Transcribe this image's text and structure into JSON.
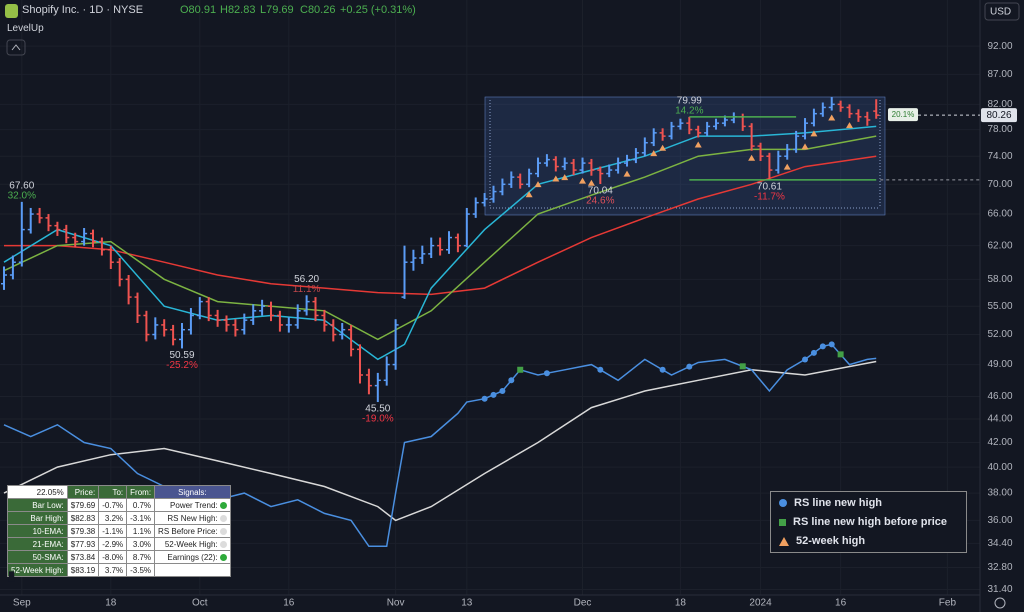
{
  "header": {
    "symbol": "Shopify Inc. · 1D · NYSE",
    "open": "O80.91",
    "high": "H82.83",
    "low": "L79.69",
    "close": "C80.26",
    "change": "+0.25 (+0.31%)",
    "indicator": "LevelUp",
    "currency": "USD"
  },
  "chart_data": {
    "type": "ohlc",
    "log_scale": true,
    "grid": true,
    "xlim": [
      -0.45,
      109.66
    ],
    "ylim": [
      31.06,
      100.8
    ],
    "xticks": [
      {
        "value": 2,
        "label": "Sep"
      },
      {
        "value": 12,
        "label": "18"
      },
      {
        "value": 22,
        "label": "Oct"
      },
      {
        "value": 32,
        "label": "16"
      },
      {
        "value": 44,
        "label": "Nov"
      },
      {
        "value": 52,
        "label": "13"
      },
      {
        "value": 65,
        "label": "Dec"
      },
      {
        "value": 76,
        "label": "18"
      },
      {
        "value": 85,
        "label": "2024"
      },
      {
        "value": 94,
        "label": "16"
      },
      {
        "value": 106,
        "label": "Feb"
      }
    ],
    "yticks": [
      {
        "value": 92,
        "label": "92.00"
      },
      {
        "value": 87,
        "label": "87.00"
      },
      {
        "value": 82,
        "label": "82.00"
      },
      {
        "value": 78,
        "label": "78.00"
      },
      {
        "value": 74,
        "label": "74.00"
      },
      {
        "value": 70,
        "label": "70.00"
      },
      {
        "value": 66,
        "label": "66.00"
      },
      {
        "value": 62,
        "label": "62.00"
      },
      {
        "value": 58,
        "label": "58.00"
      },
      {
        "value": 55,
        "label": "55.00"
      },
      {
        "value": 52,
        "label": "52.00"
      },
      {
        "value": 49,
        "label": "49.00"
      },
      {
        "value": 46,
        "label": "46.00"
      },
      {
        "value": 44,
        "label": "44.00"
      },
      {
        "value": 42,
        "label": "42.00"
      },
      {
        "value": 40,
        "label": "40.00"
      },
      {
        "value": 38,
        "label": "38.00"
      },
      {
        "value": 36,
        "label": "36.00"
      },
      {
        "value": 34.4,
        "label": "34.40"
      },
      {
        "value": 32.8,
        "label": "32.80"
      },
      {
        "value": 31.4,
        "label": "31.40"
      }
    ],
    "up_color": "#5b9cf6",
    "down_color": "#ef5350",
    "bars": {
      "open": [
        57.5,
        58.5,
        60,
        64,
        66,
        65.5,
        64.5,
        64,
        63,
        62.5,
        63.5,
        62.5,
        61.5,
        60,
        58,
        56,
        54,
        52,
        53,
        52.5,
        51.5,
        52.5,
        54,
        55.5,
        54,
        53.5,
        53,
        52.5,
        53.5,
        54.5,
        55,
        54,
        53,
        53,
        54.5,
        55.5,
        54,
        53,
        52,
        52.5,
        50.5,
        48,
        47,
        47.5,
        49,
        56,
        60,
        60.5,
        61,
        62,
        61.5,
        63,
        62,
        66,
        67.5,
        68,
        69,
        70,
        71,
        70,
        71.5,
        73,
        73.5,
        72.5,
        73,
        72,
        73,
        72,
        71.5,
        72,
        73,
        73.5,
        74.5,
        76,
        77.5,
        77,
        78.5,
        79,
        78,
        77.5,
        78.5,
        79,
        79.5,
        80,
        78.5,
        75.5,
        74,
        72,
        74,
        75,
        77,
        79,
        80.5,
        81.5,
        82,
        81.5,
        80.5,
        80,
        80.91
      ],
      "high": [
        59.5,
        60.8,
        67.6,
        66.8,
        66.8,
        66,
        65,
        64.6,
        63.6,
        64.2,
        64,
        63,
        62,
        60.5,
        58.5,
        56.5,
        54.5,
        53.8,
        53.6,
        53,
        53.2,
        54.8,
        56,
        56,
        54.6,
        54,
        53.6,
        54.2,
        55.2,
        55.7,
        55.5,
        54.5,
        53.8,
        55.2,
        56.2,
        56,
        54.6,
        53.6,
        53.2,
        53,
        51,
        48.6,
        48.2,
        49.8,
        53.6,
        62,
        61.5,
        62,
        63,
        63,
        63.8,
        63.5,
        66.8,
        68.2,
        68.8,
        69.8,
        70.8,
        71.8,
        71.5,
        72.2,
        73.8,
        74.3,
        74,
        73.8,
        73.6,
        73.8,
        73.6,
        72.5,
        72.8,
        73.8,
        74.2,
        75.2,
        76.8,
        78.2,
        78.2,
        79.2,
        79.7,
        79.99,
        78.6,
        79.2,
        79.7,
        80.2,
        80.7,
        80.5,
        79,
        76,
        74.5,
        74.8,
        75.8,
        77.8,
        79.8,
        81.3,
        82.3,
        83.19,
        82.6,
        82,
        81.2,
        80.8,
        82.83
      ],
      "low": [
        56.8,
        58,
        59.5,
        63.5,
        64.8,
        63.8,
        63.2,
        62.3,
        61.8,
        62,
        61.8,
        60.8,
        59.2,
        57.2,
        55.2,
        53.2,
        51.3,
        51.5,
        51.8,
        50.9,
        50.59,
        52,
        53.6,
        53.4,
        52.8,
        52.3,
        51.8,
        52,
        53,
        54,
        53.4,
        52.3,
        52.2,
        52.6,
        54,
        53.4,
        52.3,
        51.3,
        51.5,
        49.8,
        47.2,
        46.2,
        45.5,
        47,
        48.5,
        55.8,
        59,
        59.8,
        60.5,
        60.8,
        61,
        61.2,
        61.8,
        65.5,
        67,
        67.5,
        68.5,
        69.5,
        69.4,
        69.6,
        71,
        72.5,
        71.8,
        72,
        71.3,
        71.5,
        71.2,
        70.04,
        71,
        71.5,
        72.5,
        73,
        74,
        75.5,
        76.3,
        76.5,
        78,
        77.3,
        76.8,
        77,
        78,
        78.5,
        79,
        77.8,
        74.8,
        73.3,
        70.61,
        71.5,
        73.5,
        74.5,
        76.5,
        78.5,
        80,
        81,
        80.8,
        79.8,
        79.2,
        78.6,
        79.69
      ],
      "close": [
        58.5,
        60,
        64,
        66,
        65.5,
        64.5,
        64,
        63,
        62.5,
        63.5,
        62.5,
        61.5,
        60,
        58,
        56,
        54,
        52,
        53,
        52.5,
        51.5,
        52.5,
        54,
        55.5,
        54,
        53.5,
        53,
        52.5,
        53.5,
        54.5,
        55,
        54,
        53,
        53,
        54.5,
        55.5,
        54,
        53,
        52,
        52.5,
        50.5,
        48,
        47,
        47.5,
        49,
        53,
        60,
        60.5,
        61,
        62,
        61.5,
        63,
        62,
        66,
        67.5,
        68,
        69,
        70,
        71,
        70,
        71.5,
        73,
        73.5,
        72.5,
        73,
        72,
        73,
        72,
        71.5,
        72,
        73,
        73.5,
        74.5,
        76,
        77.5,
        77,
        78.5,
        79,
        78,
        77.5,
        78.5,
        79,
        79.5,
        80,
        78.5,
        75.5,
        74,
        72,
        74,
        75,
        77,
        79,
        80.5,
        81.5,
        82,
        81.5,
        80.5,
        80,
        79.5,
        80.26
      ]
    },
    "lines": [
      {
        "name": "50-SMA",
        "color": "#e53935",
        "x": [
          0,
          6,
          12,
          18,
          24,
          30,
          36,
          42,
          48,
          54,
          60,
          66,
          72,
          78,
          84,
          90,
          98
        ],
        "values": [
          62,
          62,
          61.5,
          60,
          58.5,
          57.5,
          57,
          56.5,
          56.3,
          57,
          60,
          63,
          65.5,
          68,
          70,
          72.5,
          74
        ]
      },
      {
        "name": "21-EMA",
        "color": "#7cb342",
        "x": [
          0,
          6,
          12,
          18,
          24,
          30,
          36,
          42,
          48,
          54,
          60,
          66,
          72,
          78,
          84,
          90,
          98
        ],
        "values": [
          59,
          62,
          62.5,
          58,
          55.5,
          55,
          54.5,
          51.5,
          54.5,
          60,
          66,
          68.5,
          71,
          74,
          75,
          75,
          77
        ]
      },
      {
        "name": "10-EMA",
        "color": "#29b6d6",
        "x": [
          0,
          6,
          12,
          18,
          24,
          30,
          36,
          42,
          45,
          48,
          54,
          60,
          66,
          72,
          78,
          84,
          90,
          98
        ],
        "values": [
          60,
          64,
          62,
          55,
          53.5,
          54,
          53.5,
          49.5,
          51,
          57,
          64,
          70,
          72,
          74,
          77,
          77,
          77.5,
          78.5
        ]
      }
    ],
    "rs_line": {
      "color": "#4a8fe0",
      "x": [
        0,
        3,
        6,
        9,
        12,
        15,
        18,
        21,
        24,
        27,
        30,
        33,
        36,
        39,
        41,
        43,
        44,
        45,
        48,
        51,
        52,
        54,
        56,
        58,
        60,
        63,
        66,
        69,
        72,
        75,
        78,
        81,
        84,
        86,
        88,
        90,
        92,
        93,
        95,
        97,
        98
      ],
      "values": [
        43.5,
        42.5,
        43.5,
        42,
        41.5,
        39.5,
        38.5,
        37,
        37.5,
        38,
        37,
        37.5,
        36.5,
        36,
        34.2,
        34.2,
        38,
        42,
        42.5,
        44.5,
        45.5,
        45.8,
        46.5,
        48.5,
        48,
        48.5,
        49,
        47.5,
        49.5,
        48,
        49.2,
        49.5,
        48.5,
        46.5,
        48.5,
        49.5,
        50.8,
        51,
        49,
        49.5,
        49.6
      ]
    },
    "rs_ma": {
      "color": "#d8d8d8",
      "x": [
        0,
        6,
        12,
        18,
        24,
        30,
        36,
        42,
        44,
        48,
        54,
        60,
        66,
        72,
        78,
        84,
        90,
        98
      ],
      "values": [
        38,
        40,
        41,
        41.5,
        40.5,
        39.5,
        38.5,
        37,
        36,
        37,
        39.5,
        42,
        45,
        46.5,
        47.5,
        48.5,
        48,
        49.3
      ]
    },
    "markers": [
      {
        "name": "RS line new high",
        "shape": "circle",
        "color": "#4a8fe0",
        "bars": [
          54,
          55,
          56,
          57,
          61,
          67,
          74,
          77,
          90,
          91,
          92,
          93
        ]
      },
      {
        "name": "RS line new high before price",
        "shape": "square",
        "color": "#43a047",
        "bars": [
          58,
          83,
          94
        ]
      },
      {
        "name": "52-week high",
        "shape": "triangle",
        "color": "#f0a060",
        "bars": [
          59,
          60,
          62,
          63,
          65,
          66,
          70,
          73,
          74,
          78,
          84,
          88,
          90,
          91,
          93,
          95
        ]
      }
    ],
    "annotations": [
      {
        "bar": 2,
        "value": 67.6,
        "label": "67.60",
        "pct": "32.0%",
        "pos": "above",
        "color": "#4caf50"
      },
      {
        "bar": 20,
        "value": 50.59,
        "label": "50.59",
        "pct": "-25.2%",
        "pos": "below",
        "color": "#f23645"
      },
      {
        "bar": 34,
        "value": 56.2,
        "label": "56.20",
        "pct": "11.1%",
        "pos": "above",
        "color": "#c0474b"
      },
      {
        "bar": 42,
        "value": 45.5,
        "label": "45.50",
        "pct": "-19.0%",
        "pos": "below",
        "color": "#f23645"
      },
      {
        "bar": 67,
        "value": 70.04,
        "label": "70.04",
        "pct": "24.6%",
        "pos": "below",
        "color": "#e0505a"
      },
      {
        "bar": 77,
        "value": 79.99,
        "label": "79.99",
        "pct": "14.2%",
        "pos": "above",
        "color": "#4caf50"
      },
      {
        "bar": 86,
        "value": 70.61,
        "label": "70.61",
        "pct": "-11.7%",
        "pos": "below",
        "color": "#f23645"
      }
    ],
    "last_price_label": "80.26",
    "range_label": "20.1%"
  },
  "table": {
    "header": [
      "22.05%",
      "Price:",
      "To:",
      "From:",
      "Signals:"
    ],
    "rows": [
      [
        "Bar Low:",
        "$79.69",
        "-0.7%",
        "0.7%"
      ],
      [
        "Bar High:",
        "$82.83",
        "3.2%",
        "-3.1%"
      ],
      [
        "10-EMA:",
        "$79.38",
        "-1.1%",
        "1.1%"
      ],
      [
        "21-EMA:",
        "$77.93",
        "-2.9%",
        "3.0%"
      ],
      [
        "50-SMA:",
        "$73.84",
        "-8.0%",
        "8.7%"
      ],
      [
        "52-Week High:",
        "$83.19",
        "3.7%",
        "-3.5%"
      ]
    ],
    "signals": [
      {
        "label": "Power Trend:",
        "on": true
      },
      {
        "label": "RS New High:",
        "on": false
      },
      {
        "label": "RS Before Price:",
        "on": false
      },
      {
        "label": "52-Week High:",
        "on": false
      },
      {
        "label": "Earnings (22):",
        "on": true
      }
    ]
  }
}
